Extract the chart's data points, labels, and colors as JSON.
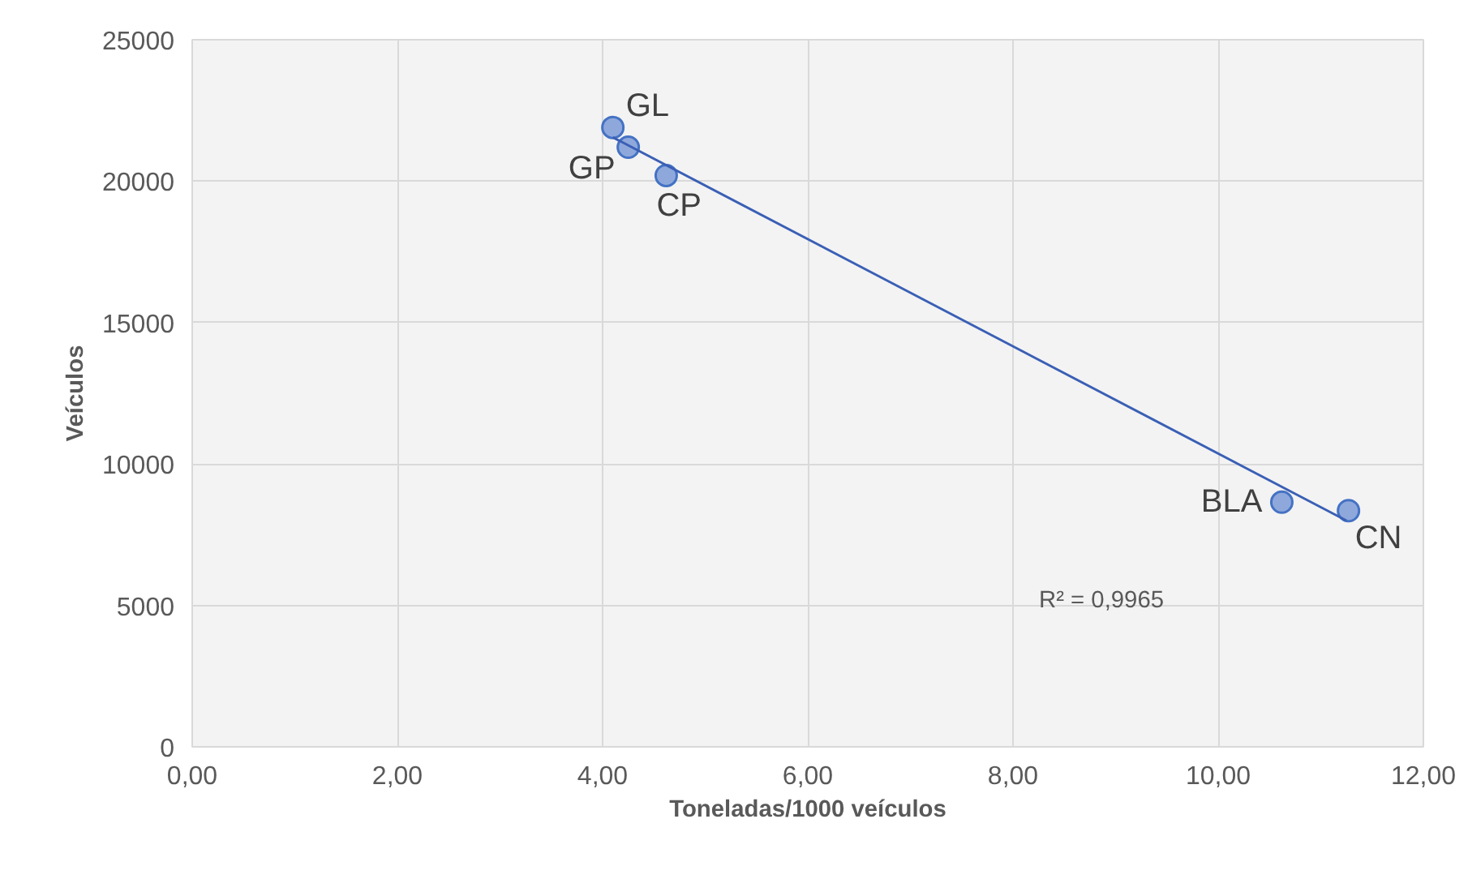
{
  "chart_data": {
    "type": "scatter",
    "xlabel": "Toneladas/1000 veículos",
    "ylabel": "Veículos",
    "xlim": [
      0,
      12
    ],
    "ylim": [
      0,
      25000
    ],
    "xticks": [
      {
        "value": 0,
        "label": "0,00"
      },
      {
        "value": 2,
        "label": "2,00"
      },
      {
        "value": 4,
        "label": "4,00"
      },
      {
        "value": 6,
        "label": "6,00"
      },
      {
        "value": 8,
        "label": "8,00"
      },
      {
        "value": 10,
        "label": "10,00"
      },
      {
        "value": 12,
        "label": "12,00"
      }
    ],
    "yticks": [
      0,
      5000,
      10000,
      15000,
      20000,
      25000
    ],
    "grid": true,
    "series": [
      {
        "color": "#8fa8dc",
        "marker": "circle",
        "x": [
          4.1,
          4.25,
          4.62,
          10.62,
          11.27
        ],
        "values": [
          21900,
          21200,
          20200,
          8650,
          8350
        ]
      },
      {
        "type": "line",
        "color": "#3a5fb5",
        "x": [
          4.1,
          11.25
        ],
        "values": [
          21550,
          8000
        ]
      }
    ],
    "annotations": [
      {
        "text": "GL",
        "x": 4.1,
        "y": 21900
      },
      {
        "text": "GP",
        "x": 4.25,
        "y": 21200
      },
      {
        "text": "CP",
        "x": 4.62,
        "y": 20200
      },
      {
        "text": "BLA",
        "x": 10.62,
        "y": 8650
      },
      {
        "text": "CN",
        "x": 11.27,
        "y": 8350
      },
      "R² = 0,9965"
    ]
  }
}
